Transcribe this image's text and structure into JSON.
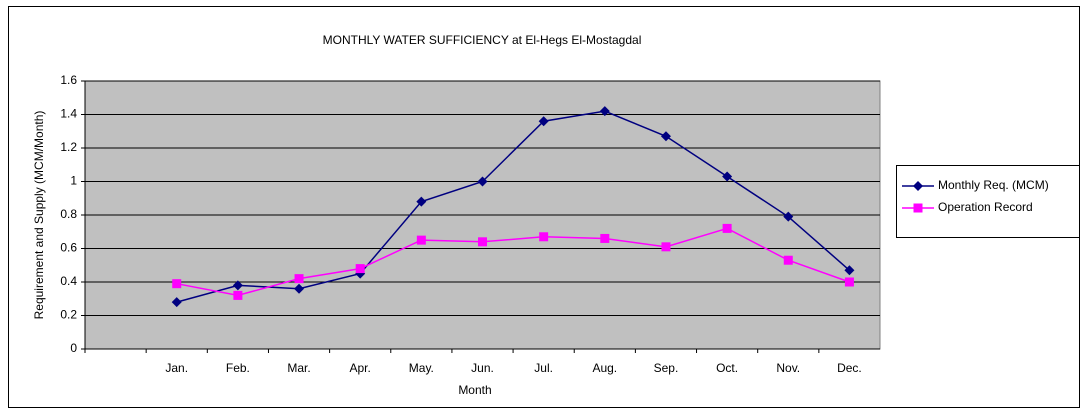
{
  "chart_data": {
    "type": "line",
    "title": "MONTHLY WATER SUFFICIENCY at El-Hegs El-Mostagdal",
    "x_label": "Month",
    "y_label": "Requirement and Supply (MCM/Month)",
    "categories": [
      null,
      "Jan.",
      "Feb.",
      "Mar.",
      "Apr.",
      "May.",
      "Jun.",
      "Jul.",
      "Aug.",
      "Sep.",
      "Oct.",
      "Nov.",
      "Dec."
    ],
    "series": [
      {
        "name": "Monthly Req.  (MCM)",
        "color": "#000080",
        "marker": "diamond",
        "values": [
          null,
          0.28,
          0.38,
          0.36,
          0.45,
          0.88,
          1.0,
          1.36,
          1.42,
          1.27,
          1.03,
          0.79,
          0.47
        ]
      },
      {
        "name": "Operation Record",
        "color": "#ff00ff",
        "marker": "square",
        "values": [
          null,
          0.39,
          0.32,
          0.42,
          0.48,
          0.65,
          0.64,
          0.67,
          0.66,
          0.61,
          0.72,
          0.53,
          0.4
        ]
      }
    ],
    "ylim": [
      0,
      1.6
    ],
    "yticks": [
      0,
      0.2,
      0.4,
      0.6,
      0.8,
      1,
      1.2,
      1.4,
      1.6
    ],
    "grid": true,
    "legend": "right"
  }
}
